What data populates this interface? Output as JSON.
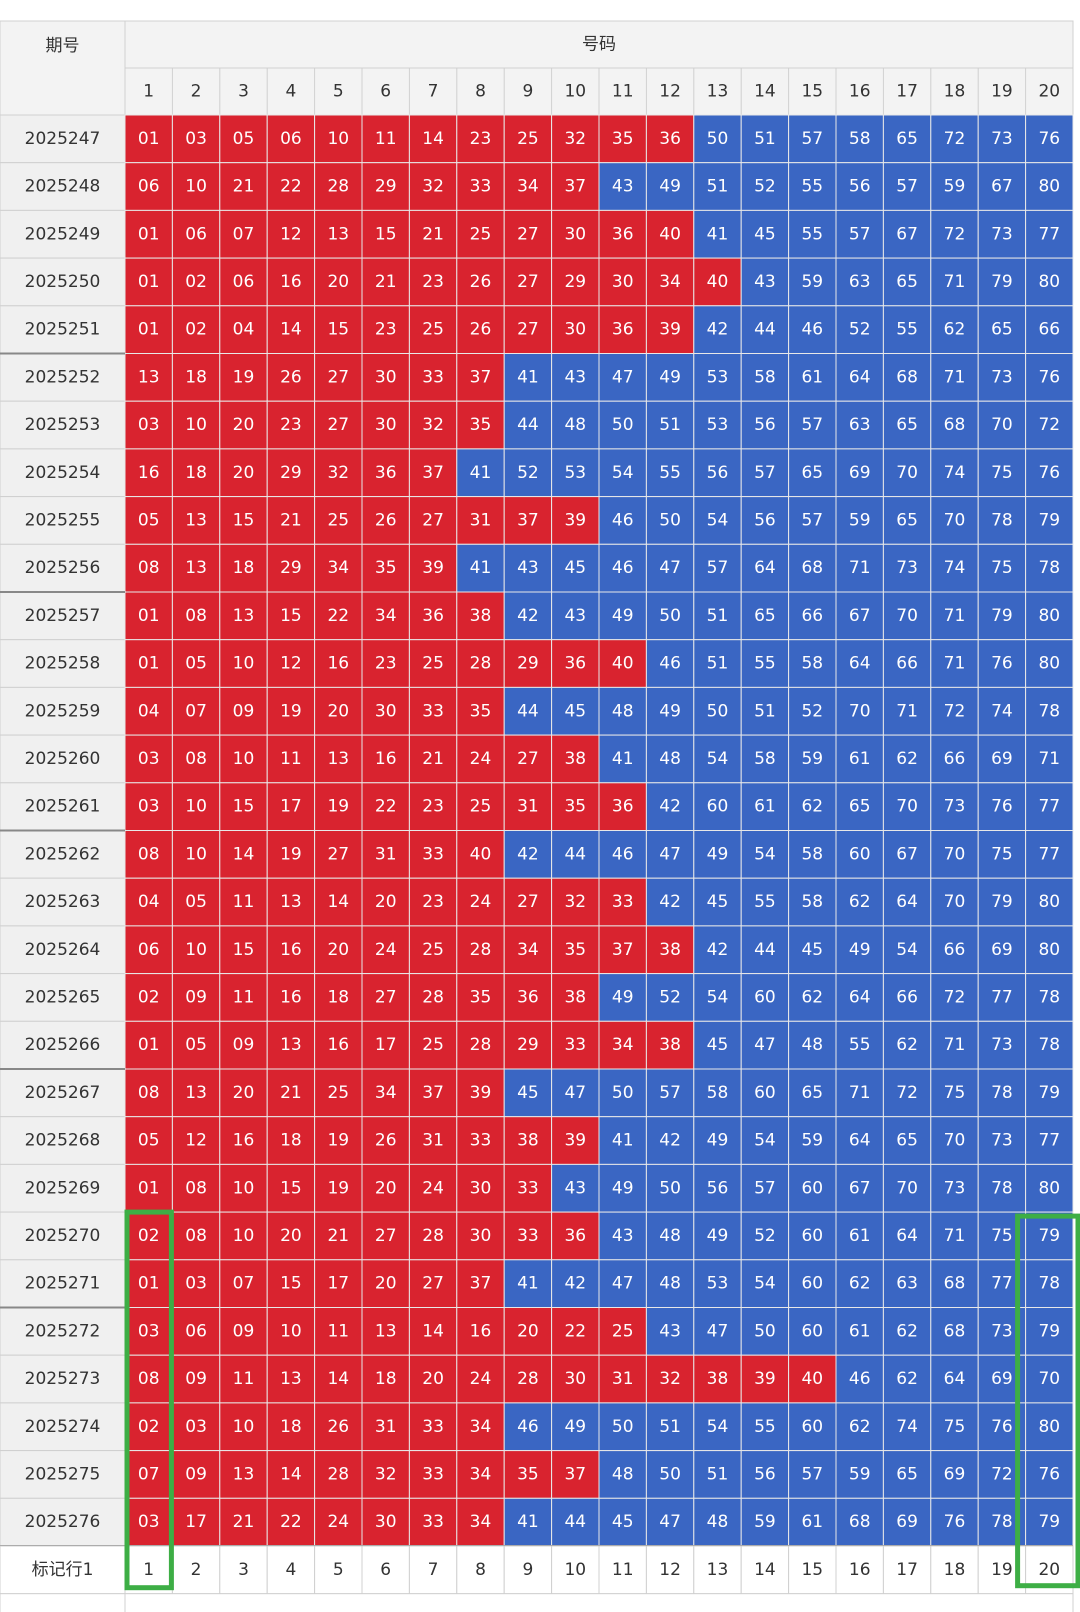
{
  "header": {
    "period_label": "期号",
    "numbers_label": "号码",
    "columns": [
      1,
      2,
      3,
      4,
      5,
      6,
      7,
      8,
      9,
      10,
      11,
      12,
      13,
      14,
      15,
      16,
      17,
      18,
      19,
      20
    ]
  },
  "colors": {
    "low": "#d9232f",
    "high": "#3a66c3"
  },
  "rows": [
    {
      "period": "2025247",
      "numbers": [
        "01",
        "03",
        "05",
        "06",
        "10",
        "11",
        "14",
        "23",
        "25",
        "32",
        "35",
        "36",
        "50",
        "51",
        "57",
        "58",
        "65",
        "72",
        "73",
        "76"
      ]
    },
    {
      "period": "2025248",
      "numbers": [
        "06",
        "10",
        "21",
        "22",
        "28",
        "29",
        "32",
        "33",
        "34",
        "37",
        "43",
        "49",
        "51",
        "52",
        "55",
        "56",
        "57",
        "59",
        "67",
        "80"
      ]
    },
    {
      "period": "2025249",
      "numbers": [
        "01",
        "06",
        "07",
        "12",
        "13",
        "15",
        "21",
        "25",
        "27",
        "30",
        "36",
        "40",
        "41",
        "45",
        "55",
        "57",
        "67",
        "72",
        "73",
        "77"
      ]
    },
    {
      "period": "2025250",
      "numbers": [
        "01",
        "02",
        "06",
        "16",
        "20",
        "21",
        "23",
        "26",
        "27",
        "29",
        "30",
        "34",
        "40",
        "43",
        "59",
        "63",
        "65",
        "71",
        "79",
        "80"
      ]
    },
    {
      "period": "2025251",
      "numbers": [
        "01",
        "02",
        "04",
        "14",
        "15",
        "23",
        "25",
        "26",
        "27",
        "30",
        "36",
        "39",
        "42",
        "44",
        "46",
        "52",
        "55",
        "62",
        "65",
        "66"
      ]
    },
    {
      "period": "2025252",
      "numbers": [
        "13",
        "18",
        "19",
        "26",
        "27",
        "30",
        "33",
        "37",
        "41",
        "43",
        "47",
        "49",
        "53",
        "58",
        "61",
        "64",
        "68",
        "71",
        "73",
        "76"
      ]
    },
    {
      "period": "2025253",
      "numbers": [
        "03",
        "10",
        "20",
        "23",
        "27",
        "30",
        "32",
        "35",
        "44",
        "48",
        "50",
        "51",
        "53",
        "56",
        "57",
        "63",
        "65",
        "68",
        "70",
        "72"
      ]
    },
    {
      "period": "2025254",
      "numbers": [
        "16",
        "18",
        "20",
        "29",
        "32",
        "36",
        "37",
        "41",
        "52",
        "53",
        "54",
        "55",
        "56",
        "57",
        "65",
        "69",
        "70",
        "74",
        "75",
        "76"
      ]
    },
    {
      "period": "2025255",
      "numbers": [
        "05",
        "13",
        "15",
        "21",
        "25",
        "26",
        "27",
        "31",
        "37",
        "39",
        "46",
        "50",
        "54",
        "56",
        "57",
        "59",
        "65",
        "70",
        "78",
        "79"
      ]
    },
    {
      "period": "2025256",
      "numbers": [
        "08",
        "13",
        "18",
        "29",
        "34",
        "35",
        "39",
        "41",
        "43",
        "45",
        "46",
        "47",
        "57",
        "64",
        "68",
        "71",
        "73",
        "74",
        "75",
        "78"
      ]
    },
    {
      "period": "2025257",
      "numbers": [
        "01",
        "08",
        "13",
        "15",
        "22",
        "34",
        "36",
        "38",
        "42",
        "43",
        "49",
        "50",
        "51",
        "65",
        "66",
        "67",
        "70",
        "71",
        "79",
        "80"
      ]
    },
    {
      "period": "2025258",
      "numbers": [
        "01",
        "05",
        "10",
        "12",
        "16",
        "23",
        "25",
        "28",
        "29",
        "36",
        "40",
        "46",
        "51",
        "55",
        "58",
        "64",
        "66",
        "71",
        "76",
        "80"
      ]
    },
    {
      "period": "2025259",
      "numbers": [
        "04",
        "07",
        "09",
        "19",
        "20",
        "30",
        "33",
        "35",
        "44",
        "45",
        "48",
        "49",
        "50",
        "51",
        "52",
        "70",
        "71",
        "72",
        "74",
        "78"
      ]
    },
    {
      "period": "2025260",
      "numbers": [
        "03",
        "08",
        "10",
        "11",
        "13",
        "16",
        "21",
        "24",
        "27",
        "38",
        "41",
        "48",
        "54",
        "58",
        "59",
        "61",
        "62",
        "66",
        "69",
        "71"
      ]
    },
    {
      "period": "2025261",
      "numbers": [
        "03",
        "10",
        "15",
        "17",
        "19",
        "22",
        "23",
        "25",
        "31",
        "35",
        "36",
        "42",
        "60",
        "61",
        "62",
        "65",
        "70",
        "73",
        "76",
        "77"
      ]
    },
    {
      "period": "2025262",
      "numbers": [
        "08",
        "10",
        "14",
        "19",
        "27",
        "31",
        "33",
        "40",
        "42",
        "44",
        "46",
        "47",
        "49",
        "54",
        "58",
        "60",
        "67",
        "70",
        "75",
        "77"
      ]
    },
    {
      "period": "2025263",
      "numbers": [
        "04",
        "05",
        "11",
        "13",
        "14",
        "20",
        "23",
        "24",
        "27",
        "32",
        "33",
        "42",
        "45",
        "55",
        "58",
        "62",
        "64",
        "70",
        "79",
        "80"
      ]
    },
    {
      "period": "2025264",
      "numbers": [
        "06",
        "10",
        "15",
        "16",
        "20",
        "24",
        "25",
        "28",
        "34",
        "35",
        "37",
        "38",
        "42",
        "44",
        "45",
        "49",
        "54",
        "66",
        "69",
        "80"
      ]
    },
    {
      "period": "2025265",
      "numbers": [
        "02",
        "09",
        "11",
        "16",
        "18",
        "27",
        "28",
        "35",
        "36",
        "38",
        "49",
        "52",
        "54",
        "60",
        "62",
        "64",
        "66",
        "72",
        "77",
        "78"
      ]
    },
    {
      "period": "2025266",
      "numbers": [
        "01",
        "05",
        "09",
        "13",
        "16",
        "17",
        "25",
        "28",
        "29",
        "33",
        "34",
        "38",
        "45",
        "47",
        "48",
        "55",
        "62",
        "71",
        "73",
        "78"
      ]
    },
    {
      "period": "2025267",
      "numbers": [
        "08",
        "13",
        "20",
        "21",
        "25",
        "34",
        "37",
        "39",
        "45",
        "47",
        "50",
        "57",
        "58",
        "60",
        "65",
        "71",
        "72",
        "75",
        "78",
        "79"
      ]
    },
    {
      "period": "2025268",
      "numbers": [
        "05",
        "12",
        "16",
        "18",
        "19",
        "26",
        "31",
        "33",
        "38",
        "39",
        "41",
        "42",
        "49",
        "54",
        "59",
        "64",
        "65",
        "70",
        "73",
        "77"
      ]
    },
    {
      "period": "2025269",
      "numbers": [
        "01",
        "08",
        "10",
        "15",
        "19",
        "20",
        "24",
        "30",
        "33",
        "43",
        "49",
        "50",
        "56",
        "57",
        "60",
        "67",
        "70",
        "73",
        "78",
        "80"
      ]
    },
    {
      "period": "2025270",
      "numbers": [
        "02",
        "08",
        "10",
        "20",
        "21",
        "27",
        "28",
        "30",
        "33",
        "36",
        "43",
        "48",
        "49",
        "52",
        "60",
        "61",
        "64",
        "71",
        "75",
        "79"
      ]
    },
    {
      "period": "2025271",
      "numbers": [
        "01",
        "03",
        "07",
        "15",
        "17",
        "20",
        "27",
        "37",
        "41",
        "42",
        "47",
        "48",
        "53",
        "54",
        "60",
        "62",
        "63",
        "68",
        "77",
        "78"
      ]
    },
    {
      "period": "2025272",
      "numbers": [
        "03",
        "06",
        "09",
        "10",
        "11",
        "13",
        "14",
        "16",
        "20",
        "22",
        "25",
        "43",
        "47",
        "50",
        "60",
        "61",
        "62",
        "68",
        "73",
        "79"
      ]
    },
    {
      "period": "2025273",
      "numbers": [
        "08",
        "09",
        "11",
        "13",
        "14",
        "18",
        "20",
        "24",
        "28",
        "30",
        "31",
        "32",
        "38",
        "39",
        "40",
        "46",
        "62",
        "64",
        "69",
        "70"
      ]
    },
    {
      "period": "2025274",
      "numbers": [
        "02",
        "03",
        "10",
        "18",
        "26",
        "31",
        "33",
        "34",
        "46",
        "49",
        "50",
        "51",
        "54",
        "55",
        "60",
        "62",
        "74",
        "75",
        "76",
        "80"
      ]
    },
    {
      "period": "2025275",
      "numbers": [
        "07",
        "09",
        "13",
        "14",
        "28",
        "32",
        "33",
        "34",
        "35",
        "37",
        "48",
        "50",
        "51",
        "56",
        "57",
        "59",
        "65",
        "69",
        "72",
        "76"
      ]
    },
    {
      "period": "2025276",
      "numbers": [
        "03",
        "17",
        "21",
        "22",
        "24",
        "30",
        "33",
        "34",
        "41",
        "44",
        "45",
        "47",
        "48",
        "59",
        "61",
        "68",
        "69",
        "76",
        "78",
        "79"
      ]
    }
  ],
  "marker_row": {
    "label": "标记行1",
    "values": [
      1,
      2,
      3,
      4,
      5,
      6,
      7,
      8,
      9,
      10,
      11,
      12,
      13,
      14,
      15,
      16,
      17,
      18,
      19,
      20
    ]
  }
}
